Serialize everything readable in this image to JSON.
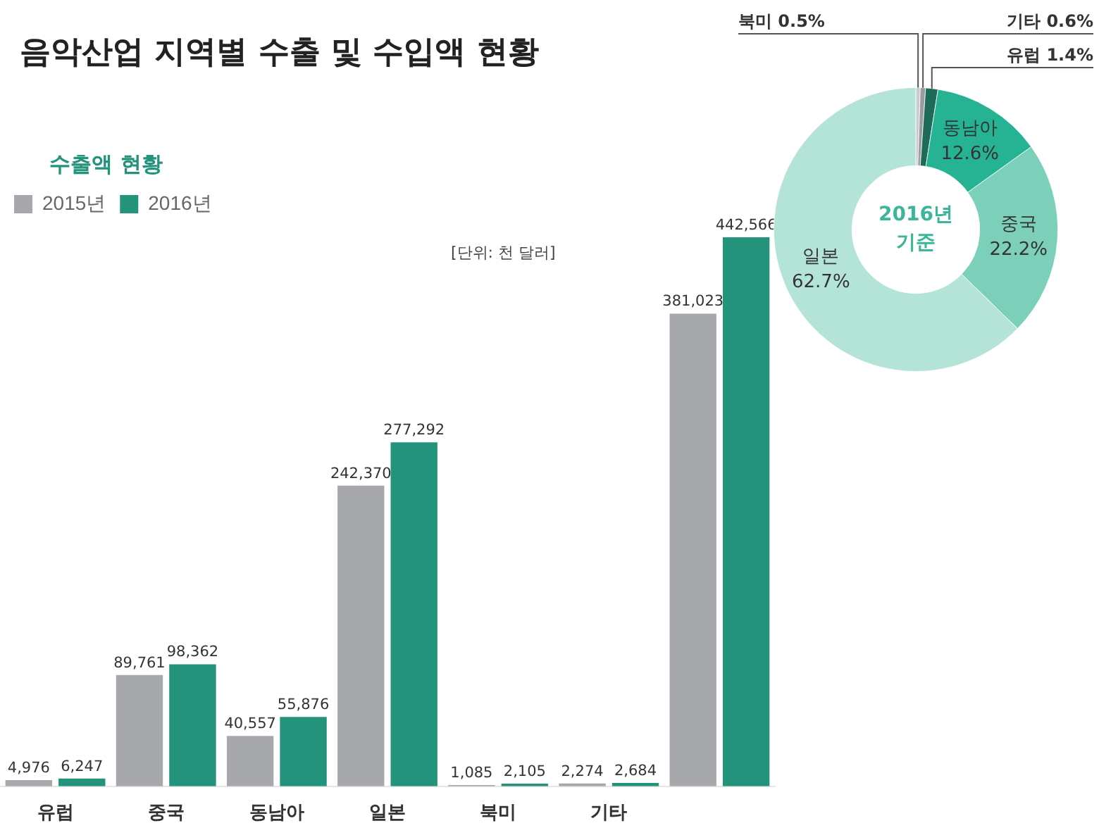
{
  "chart_data": [
    {
      "type": "bar",
      "title": "음악산업 지역별 수출 및 수입액 현황",
      "legend_title": "수출액 현황",
      "legend": "top left",
      "annotations": [
        "[단위: 천 달러]"
      ],
      "categories": [
        "유럽",
        "중국",
        "동남아",
        "일본",
        "북미",
        "기타",
        null
      ],
      "series": [
        {
          "name": "2015년",
          "color": "#a7a8ab",
          "values": [
            4976,
            89761,
            40557,
            242370,
            1085,
            2274,
            381023
          ],
          "value_labels": [
            "4,976",
            "89,761",
            "40,557",
            "242,370",
            "1,085",
            "2,274",
            "381,023"
          ]
        },
        {
          "name": "2016년",
          "color": "#23937b",
          "values": [
            6247,
            98362,
            55876,
            277292,
            2105,
            2684,
            442566
          ],
          "value_labels": [
            "6,247",
            "98,362",
            "55,876",
            "277,292",
            "2,105",
            "2,684",
            "442,566"
          ]
        }
      ],
      "tick_labels": "x",
      "grid": false
    },
    {
      "type": "donut",
      "annotations": [
        "2016년 기준"
      ],
      "value_labels": [
        "0.5%",
        "0.6%",
        "1.4%",
        "12.6%",
        "22.2%",
        "62.7%"
      ],
      "categories": [
        "북미",
        "기타",
        "유럽",
        "동남아",
        "중국",
        "일본"
      ],
      "values": [
        0.5,
        0.6,
        1.4,
        12.6,
        22.2,
        62.7
      ],
      "colors": [
        "#c9cacc",
        "#9a9c9f",
        "#1d6b58",
        "#26b394",
        "#7ccfb8",
        "#b4e3d7"
      ]
    }
  ]
}
